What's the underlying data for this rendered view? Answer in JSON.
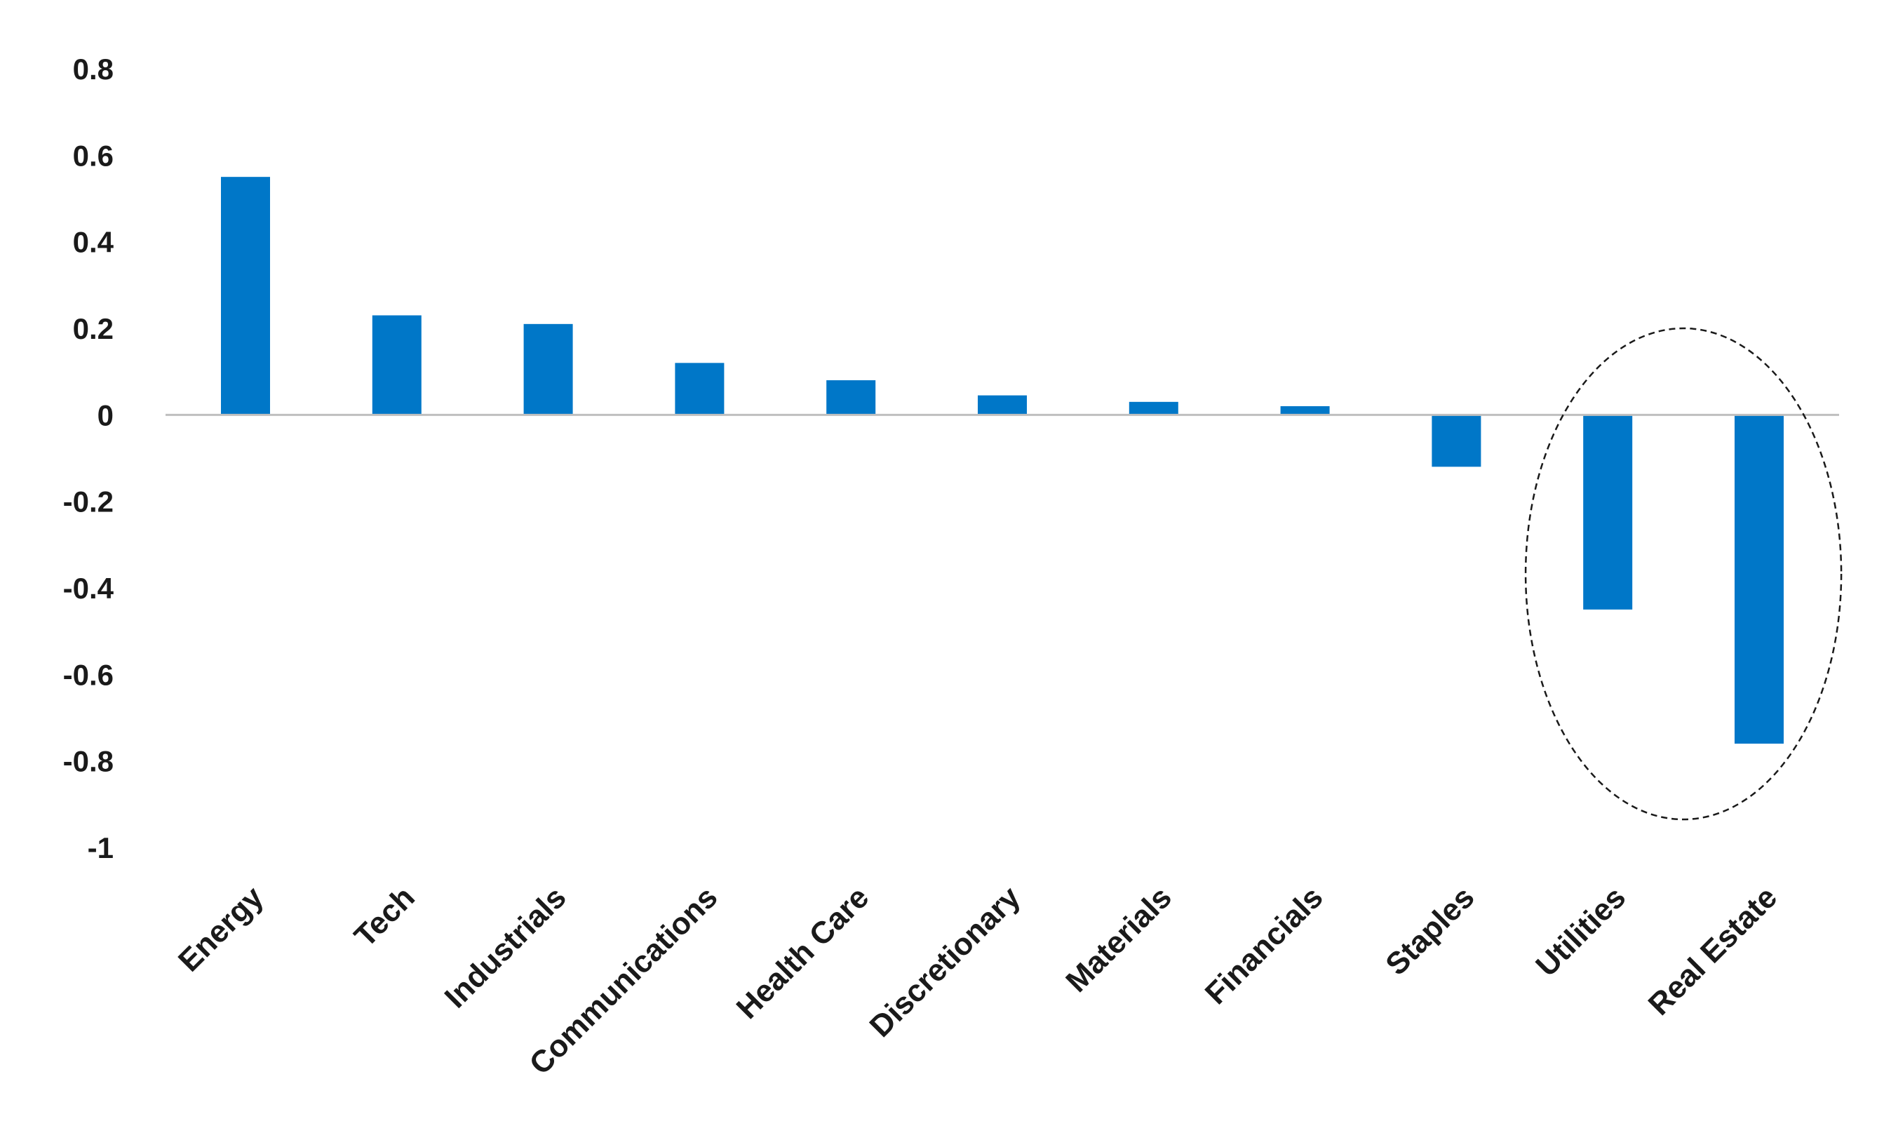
{
  "chart_data": {
    "type": "bar",
    "title": "",
    "xlabel": "",
    "ylabel": "",
    "categories": [
      "Energy",
      "Tech",
      "Industrials",
      "Communications",
      "Health Care",
      "Discretionary",
      "Materials",
      "Financials",
      "Staples",
      "Utilities",
      "Real Estate"
    ],
    "series": [
      {
        "values": [
          0.55,
          0.23,
          0.21,
          0.12,
          0.08,
          0.045,
          0.03,
          0.02,
          -0.12,
          -0.45,
          -0.76
        ],
        "color": "#0077C8"
      }
    ],
    "ylim": [
      -1,
      0.8
    ],
    "yticks": [
      0.8,
      0.6,
      0.4,
      0.2,
      0,
      -0.2,
      -0.4,
      -0.6,
      -0.8,
      -1
    ],
    "ytick_labels": [
      "0.8",
      "0.6",
      "0.4",
      "0.2",
      "0",
      "-0.2",
      "-0.4",
      "-0.6",
      "-0.8",
      "-1"
    ],
    "grid": false,
    "legend": "none",
    "zero_line_color": "#BFBFBF",
    "annotation": {
      "shape": "dashed-ellipse",
      "highlights": [
        "Utilities",
        "Real Estate"
      ],
      "color": "#1a1a1a"
    }
  }
}
